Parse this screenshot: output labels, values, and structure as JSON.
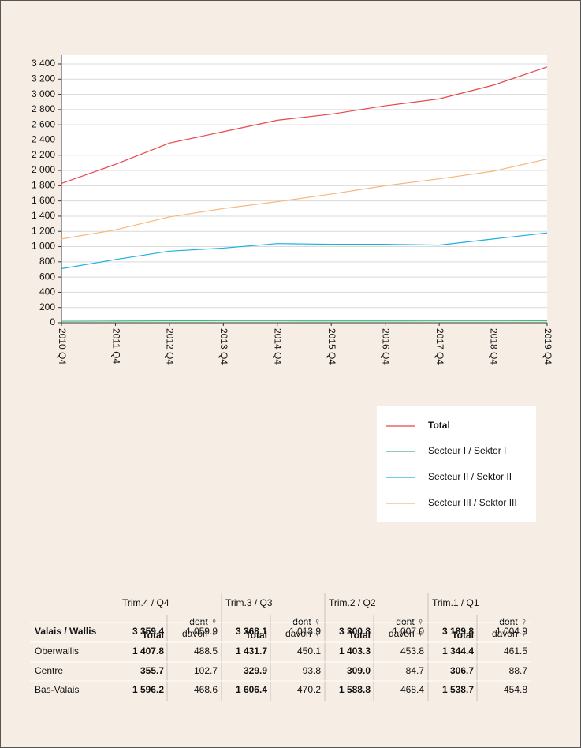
{
  "chart_data": {
    "type": "line",
    "categories": [
      "2010 Q4",
      "2011 Q4",
      "2012 Q4",
      "2013 Q4",
      "2014 Q4",
      "2015 Q4",
      "2016 Q4",
      "2017 Q4",
      "2018 Q4",
      "2019 Q4"
    ],
    "series": [
      {
        "name": "Total",
        "color": "#e8474a",
        "values": [
          1830,
          2080,
          2360,
          2510,
          2660,
          2740,
          2850,
          2940,
          3120,
          3360
        ]
      },
      {
        "name": "Secteur I / Sektor I",
        "color": "#3cb878",
        "values": [
          20,
          22,
          25,
          24,
          24,
          23,
          23,
          24,
          24,
          25
        ]
      },
      {
        "name": "Secteur II / Sektor II",
        "color": "#1ab0e0",
        "values": [
          710,
          830,
          940,
          980,
          1040,
          1030,
          1030,
          1020,
          1100,
          1180
        ]
      },
      {
        "name": "Secteur III / Sektor III",
        "color": "#f5b87a",
        "values": [
          1100,
          1220,
          1390,
          1500,
          1590,
          1690,
          1800,
          1890,
          1990,
          2150
        ]
      }
    ],
    "ylim": [
      0,
      3400
    ],
    "yticks": [
      0,
      200,
      400,
      600,
      800,
      {
        "value": 1000,
        "label": "1 000"
      },
      {
        "value": 1200,
        "label": "1 200"
      },
      {
        "value": 1400,
        "label": "1 400"
      },
      {
        "value": 1600,
        "label": "1 600"
      },
      {
        "value": 1800,
        "label": "1 800"
      },
      {
        "value": 2000,
        "label": "2 000"
      },
      {
        "value": 2200,
        "label": "2 200"
      },
      {
        "value": 2400,
        "label": "2 400"
      },
      {
        "value": 2600,
        "label": "2 600"
      },
      {
        "value": 2800,
        "label": "2 800"
      },
      {
        "value": 3000,
        "label": "3 000"
      },
      {
        "value": 3200,
        "label": "3 200"
      },
      {
        "value": 3400,
        "label": "3 400"
      }
    ],
    "grid": true
  },
  "table": {
    "groups": [
      "Trim.4 / Q4",
      "Trim.3 / Q3",
      "Trim.2 / Q2",
      "Trim.1 / Q1"
    ],
    "subheaders": [
      "Total",
      "dont ♀",
      "davon ♀"
    ],
    "rows": [
      {
        "label": "Valais / Wallis",
        "cells": [
          "3 359.4",
          "1 059.9",
          "3 368.1",
          "1 013.9",
          "3 300.8",
          "1 007.0",
          "3 189.8",
          "1 004.9"
        ]
      },
      {
        "label": "Oberwallis",
        "cells": [
          "1 407.8",
          "488.5",
          "1 431.7",
          "450.1",
          "1 403.3",
          "453.8",
          "1 344.4",
          "461.5"
        ]
      },
      {
        "label": "Centre",
        "cells": [
          "355.7",
          "102.7",
          "329.9",
          "93.8",
          "309.0",
          "84.7",
          "306.7",
          "88.7"
        ]
      },
      {
        "label": "Bas-Valais",
        "cells": [
          "1 596.2",
          "468.6",
          "1 606.4",
          "470.2",
          "1 588.8",
          "468.4",
          "1 538.7",
          "454.8"
        ]
      }
    ]
  }
}
